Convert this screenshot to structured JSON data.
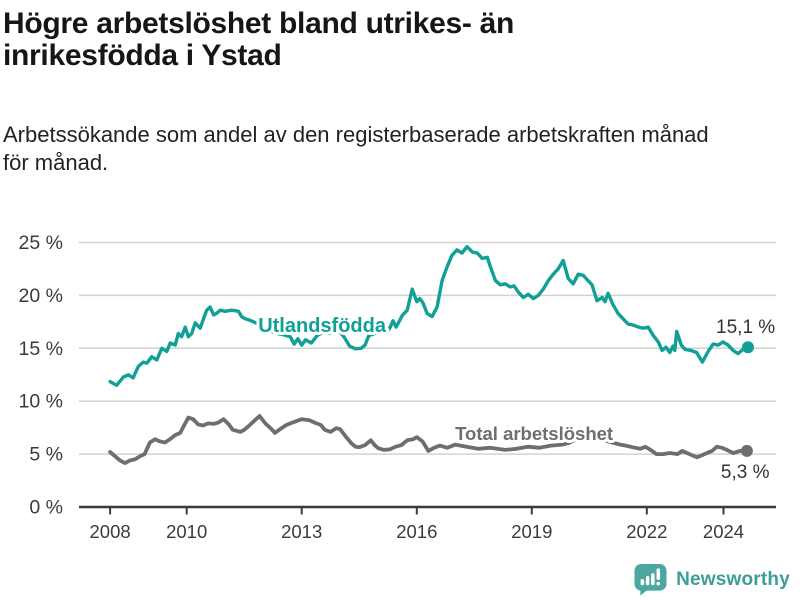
{
  "header": {
    "title": "Högre arbetslöshet bland utrikes- än\ninrikesfödda i Ystad",
    "subtitle": "Arbetssökande som andel av den registerbaserade arbetskraften månad\nför månad."
  },
  "colors": {
    "accent_teal": "#10a095",
    "series_gray": "#6e6e6e",
    "grid": "#d2d2d2",
    "axis": "#3b3b3b",
    "axis_text": "#3b3b3b",
    "value_label": "#333333",
    "logo_teal": "#4da7a1",
    "brand_text": "#3d9e99"
  },
  "footer": {
    "brand_name": "Newsworthy",
    "logo_icon": "bar-chart-speech-bubble-icon"
  },
  "chart_data": {
    "type": "line",
    "title": "Högre arbetslöshet bland utrikes- än inrikesfödda i Ystad",
    "xlabel": "",
    "ylabel": "",
    "grid": "horizontal",
    "legend": "inline-labels",
    "xlim": [
      2007.19,
      2025.37
    ],
    "ylim": [
      0,
      25
    ],
    "x_ticks": [
      2008,
      2010,
      2013,
      2016,
      2019,
      2022,
      2024
    ],
    "x_tick_labels": [
      "2008",
      "2010",
      "2013",
      "2016",
      "2019",
      "2022",
      "2024"
    ],
    "y_ticks": [
      0,
      5,
      10,
      15,
      20,
      25
    ],
    "y_tick_labels": [
      "0 %",
      "5 %",
      "10 %",
      "15 %",
      "20 %",
      "25 %"
    ],
    "series": [
      {
        "id": "utlandsfodda",
        "name": "Utlandsfödda",
        "color": "#10a095",
        "line_width": 3.4,
        "label_pos": {
          "x": 2013.53,
          "y": 16.55,
          "size": 20
        },
        "end_label": {
          "text": "15,1 %",
          "x": 2025.35,
          "y": 16.45,
          "size": 19
        },
        "points": [
          [
            2008,
            11.85
          ],
          [
            2008.17,
            11.5
          ],
          [
            2008.35,
            12.3
          ],
          [
            2008.48,
            12.5
          ],
          [
            2008.6,
            12.2
          ],
          [
            2008.74,
            13.3
          ],
          [
            2008.87,
            13.7
          ],
          [
            2008.96,
            13.6
          ],
          [
            2009.09,
            14.2
          ],
          [
            2009.22,
            13.9
          ],
          [
            2009.35,
            15.0
          ],
          [
            2009.48,
            14.7
          ],
          [
            2009.57,
            15.5
          ],
          [
            2009.7,
            15.3
          ],
          [
            2009.78,
            16.4
          ],
          [
            2009.87,
            16.1
          ],
          [
            2009.96,
            17.0
          ],
          [
            2010.04,
            16.1
          ],
          [
            2010.13,
            16.4
          ],
          [
            2010.22,
            17.4
          ],
          [
            2010.35,
            16.9
          ],
          [
            2010.43,
            17.7
          ],
          [
            2010.52,
            18.6
          ],
          [
            2010.61,
            18.9
          ],
          [
            2010.7,
            18.15
          ],
          [
            2010.78,
            18.3
          ],
          [
            2010.87,
            18.6
          ],
          [
            2011,
            18.5
          ],
          [
            2011.17,
            18.6
          ],
          [
            2011.35,
            18.5
          ],
          [
            2011.43,
            18.0
          ],
          [
            2011.52,
            17.8
          ],
          [
            2011.61,
            17.7
          ],
          [
            2011.75,
            17.5
          ],
          [
            2011.9,
            17.2
          ],
          [
            2012.05,
            16.9
          ],
          [
            2012.2,
            16.6
          ],
          [
            2012.35,
            16.4
          ],
          [
            2012.5,
            16.3
          ],
          [
            2012.6,
            16.2
          ],
          [
            2012.7,
            16.1
          ],
          [
            2012.8,
            15.4
          ],
          [
            2012.9,
            15.9
          ],
          [
            2013,
            15.3
          ],
          [
            2013.1,
            15.8
          ],
          [
            2013.25,
            15.5
          ],
          [
            2013.4,
            16.2
          ],
          [
            2013.55,
            16.5
          ],
          [
            2013.7,
            16.4
          ],
          [
            2013.85,
            16.6
          ],
          [
            2014,
            16.5
          ],
          [
            2014.1,
            16.1
          ],
          [
            2014.25,
            15.2
          ],
          [
            2014.4,
            14.95
          ],
          [
            2014.55,
            15.0
          ],
          [
            2014.65,
            15.3
          ],
          [
            2014.75,
            16.2
          ],
          [
            2014.9,
            16.4
          ],
          [
            2015.05,
            16.6
          ],
          [
            2015.15,
            16.9
          ],
          [
            2015.25,
            16.7
          ],
          [
            2015.31,
            17.0
          ],
          [
            2015.38,
            17.6
          ],
          [
            2015.46,
            17.0
          ],
          [
            2015.55,
            17.6
          ],
          [
            2015.62,
            18.1
          ],
          [
            2015.75,
            18.6
          ],
          [
            2015.88,
            20.6
          ],
          [
            2016,
            19.4
          ],
          [
            2016.08,
            19.7
          ],
          [
            2016.16,
            19.3
          ],
          [
            2016.27,
            18.3
          ],
          [
            2016.4,
            18.0
          ],
          [
            2016.53,
            18.9
          ],
          [
            2016.66,
            21.4
          ],
          [
            2016.79,
            22.7
          ],
          [
            2016.92,
            23.8
          ],
          [
            2017.05,
            24.3
          ],
          [
            2017.18,
            24.0
          ],
          [
            2017.31,
            24.6
          ],
          [
            2017.45,
            24.1
          ],
          [
            2017.58,
            24.0
          ],
          [
            2017.71,
            23.5
          ],
          [
            2017.84,
            23.6
          ],
          [
            2017.92,
            22.7
          ],
          [
            2018.05,
            21.4
          ],
          [
            2018.18,
            21.0
          ],
          [
            2018.31,
            21.1
          ],
          [
            2018.44,
            20.8
          ],
          [
            2018.54,
            20.9
          ],
          [
            2018.65,
            20.3
          ],
          [
            2018.78,
            19.8
          ],
          [
            2018.91,
            20.1
          ],
          [
            2019.04,
            19.7
          ],
          [
            2019.17,
            20.0
          ],
          [
            2019.3,
            20.6
          ],
          [
            2019.43,
            21.4
          ],
          [
            2019.56,
            22.0
          ],
          [
            2019.69,
            22.5
          ],
          [
            2019.82,
            23.3
          ],
          [
            2019.95,
            21.6
          ],
          [
            2020.08,
            21.1
          ],
          [
            2020.21,
            22.0
          ],
          [
            2020.34,
            21.9
          ],
          [
            2020.47,
            21.4
          ],
          [
            2020.57,
            21.0
          ],
          [
            2020.7,
            19.5
          ],
          [
            2020.84,
            19.8
          ],
          [
            2020.91,
            19.4
          ],
          [
            2020.99,
            20.2
          ],
          [
            2021.12,
            19.1
          ],
          [
            2021.25,
            18.3
          ],
          [
            2021.38,
            17.8
          ],
          [
            2021.51,
            17.3
          ],
          [
            2021.64,
            17.2
          ],
          [
            2021.78,
            17.0
          ],
          [
            2021.91,
            16.9
          ],
          [
            2022.04,
            17.0
          ],
          [
            2022.17,
            16.2
          ],
          [
            2022.3,
            15.6
          ],
          [
            2022.4,
            14.8
          ],
          [
            2022.5,
            15.1
          ],
          [
            2022.6,
            14.6
          ],
          [
            2022.68,
            15.2
          ],
          [
            2022.73,
            14.8
          ],
          [
            2022.78,
            16.6
          ],
          [
            2022.9,
            15.3
          ],
          [
            2023,
            14.9
          ],
          [
            2023.15,
            14.8
          ],
          [
            2023.3,
            14.6
          ],
          [
            2023.45,
            13.7
          ],
          [
            2023.6,
            14.7
          ],
          [
            2023.73,
            15.4
          ],
          [
            2023.86,
            15.3
          ],
          [
            2023.99,
            15.6
          ],
          [
            2024.12,
            15.3
          ],
          [
            2024.25,
            14.8
          ],
          [
            2024.38,
            14.5
          ],
          [
            2024.51,
            14.9
          ],
          [
            2024.64,
            15.1
          ]
        ]
      },
      {
        "id": "total",
        "name": "Total arbetslöshet",
        "color": "#6e6e6e",
        "line_width": 3.8,
        "label_pos": {
          "x": 2019.06,
          "y": 6.33,
          "size": 18.5
        },
        "end_label": {
          "text": "5,3 %",
          "x": 2025.2,
          "y": 2.75,
          "size": 19
        },
        "points": [
          [
            2008,
            5.2
          ],
          [
            2008.13,
            4.8
          ],
          [
            2008.26,
            4.4
          ],
          [
            2008.39,
            4.15
          ],
          [
            2008.52,
            4.4
          ],
          [
            2008.65,
            4.5
          ],
          [
            2008.78,
            4.8
          ],
          [
            2008.9,
            5.0
          ],
          [
            2009.04,
            6.1
          ],
          [
            2009.17,
            6.4
          ],
          [
            2009.3,
            6.2
          ],
          [
            2009.43,
            6.1
          ],
          [
            2009.56,
            6.4
          ],
          [
            2009.7,
            6.8
          ],
          [
            2009.83,
            7.0
          ],
          [
            2009.96,
            7.9
          ],
          [
            2010.04,
            8.45
          ],
          [
            2010.17,
            8.3
          ],
          [
            2010.3,
            7.8
          ],
          [
            2010.43,
            7.7
          ],
          [
            2010.56,
            7.9
          ],
          [
            2010.7,
            7.85
          ],
          [
            2010.83,
            8.0
          ],
          [
            2010.96,
            8.3
          ],
          [
            2011.1,
            7.8
          ],
          [
            2011.2,
            7.3
          ],
          [
            2011.3,
            7.2
          ],
          [
            2011.4,
            7.1
          ],
          [
            2011.5,
            7.3
          ],
          [
            2011.6,
            7.6
          ],
          [
            2011.75,
            8.1
          ],
          [
            2011.9,
            8.6
          ],
          [
            2012.05,
            7.9
          ],
          [
            2012.2,
            7.4
          ],
          [
            2012.3,
            7.0
          ],
          [
            2012.45,
            7.4
          ],
          [
            2012.6,
            7.75
          ],
          [
            2012.7,
            7.9
          ],
          [
            2012.85,
            8.1
          ],
          [
            2013,
            8.3
          ],
          [
            2013.1,
            8.25
          ],
          [
            2013.2,
            8.2
          ],
          [
            2013.35,
            7.95
          ],
          [
            2013.5,
            7.75
          ],
          [
            2013.6,
            7.3
          ],
          [
            2013.75,
            7.1
          ],
          [
            2013.9,
            7.45
          ],
          [
            2014,
            7.35
          ],
          [
            2014.15,
            6.65
          ],
          [
            2014.3,
            6.0
          ],
          [
            2014.4,
            5.7
          ],
          [
            2014.5,
            5.65
          ],
          [
            2014.65,
            5.85
          ],
          [
            2014.8,
            6.3
          ],
          [
            2014.9,
            5.85
          ],
          [
            2015,
            5.55
          ],
          [
            2015.15,
            5.4
          ],
          [
            2015.3,
            5.45
          ],
          [
            2015.45,
            5.7
          ],
          [
            2015.6,
            5.85
          ],
          [
            2015.75,
            6.3
          ],
          [
            2015.9,
            6.4
          ],
          [
            2016,
            6.6
          ],
          [
            2016.15,
            6.2
          ],
          [
            2016.3,
            5.3
          ],
          [
            2016.45,
            5.6
          ],
          [
            2016.6,
            5.8
          ],
          [
            2016.8,
            5.6
          ],
          [
            2017,
            5.9
          ],
          [
            2017.3,
            5.7
          ],
          [
            2017.6,
            5.5
          ],
          [
            2017.9,
            5.6
          ],
          [
            2018.1,
            5.5
          ],
          [
            2018.3,
            5.4
          ],
          [
            2018.6,
            5.5
          ],
          [
            2018.9,
            5.7
          ],
          [
            2019.2,
            5.6
          ],
          [
            2019.5,
            5.8
          ],
          [
            2019.8,
            5.9
          ],
          [
            2020,
            6.1
          ],
          [
            2020.2,
            6.5
          ],
          [
            2020.4,
            6.5
          ],
          [
            2020.6,
            6.4
          ],
          [
            2020.9,
            6.3
          ],
          [
            2021.1,
            6.1
          ],
          [
            2021.3,
            5.9
          ],
          [
            2021.45,
            5.8
          ],
          [
            2021.57,
            5.7
          ],
          [
            2021.7,
            5.6
          ],
          [
            2021.83,
            5.5
          ],
          [
            2021.96,
            5.7
          ],
          [
            2022.1,
            5.4
          ],
          [
            2022.25,
            5.0
          ],
          [
            2022.43,
            5.0
          ],
          [
            2022.6,
            5.1
          ],
          [
            2022.8,
            5.0
          ],
          [
            2022.92,
            5.3
          ],
          [
            2023.05,
            5.1
          ],
          [
            2023.18,
            4.9
          ],
          [
            2023.31,
            4.7
          ],
          [
            2023.44,
            4.9
          ],
          [
            2023.57,
            5.1
          ],
          [
            2023.7,
            5.3
          ],
          [
            2023.83,
            5.7
          ],
          [
            2023.96,
            5.6
          ],
          [
            2024.09,
            5.4
          ],
          [
            2024.25,
            5.1
          ],
          [
            2024.43,
            5.3
          ],
          [
            2024.61,
            5.3
          ]
        ]
      }
    ]
  }
}
